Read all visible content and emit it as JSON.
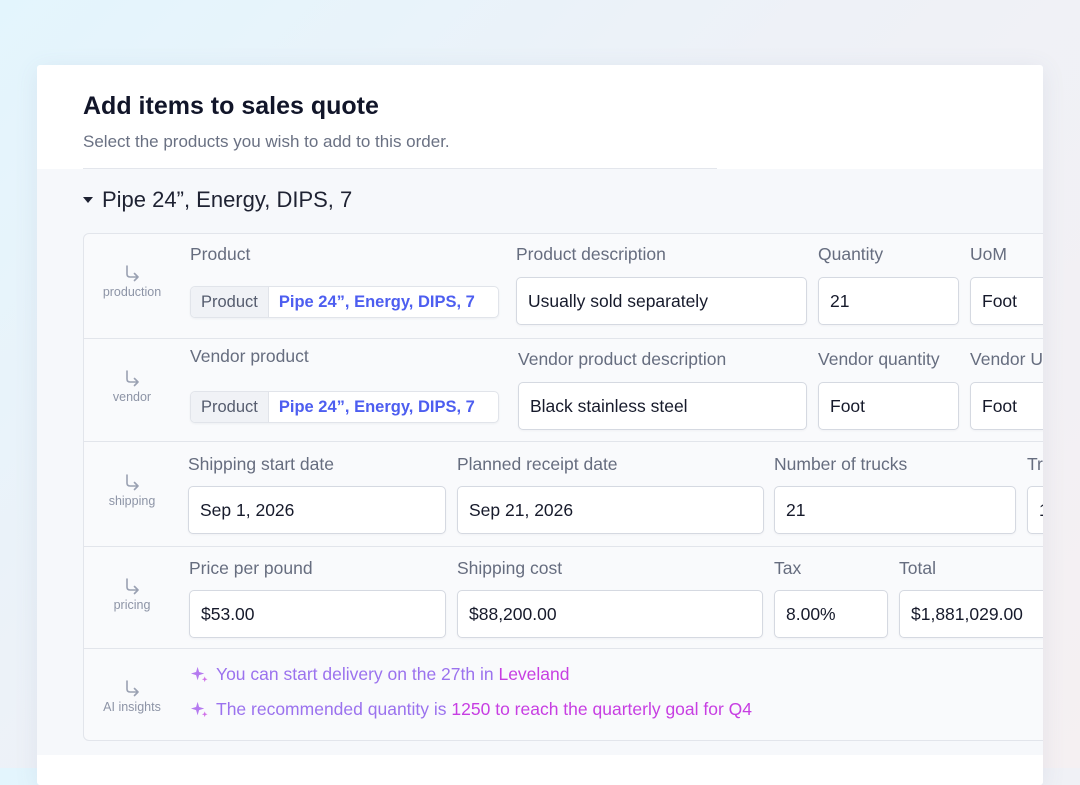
{
  "dialog": {
    "title": "Add items to sales quote",
    "subtitle": "Select the products you wish to add to this order."
  },
  "group": {
    "title": "Pipe 24”, Energy, DIPS, 7"
  },
  "rows": {
    "production": {
      "label": "production",
      "product": {
        "label": "Product",
        "type": "Product",
        "value": "Pipe 24”, Energy, DIPS, 7"
      },
      "description": {
        "label": "Product description",
        "value": "Usually sold separately"
      },
      "quantity": {
        "label": "Quantity",
        "value": "21"
      },
      "uom": {
        "label": "UoM",
        "value": "Foot"
      }
    },
    "vendor": {
      "label": "vendor",
      "product": {
        "label": "Vendor product",
        "type": "Product",
        "value": "Pipe 24”, Energy, DIPS, 7"
      },
      "description": {
        "label": "Vendor product description",
        "value": "Black stainless steel"
      },
      "quantity": {
        "label": "Vendor quantity",
        "value": "Foot"
      },
      "uom": {
        "label": "Vendor U",
        "value": "Foot"
      }
    },
    "shipping": {
      "label": "shipping",
      "start_date": {
        "label": "Shipping start date",
        "value": "Sep 1, 2026"
      },
      "receipt_date": {
        "label": "Planned receipt date",
        "value": "Sep 21, 2026"
      },
      "trucks": {
        "label": "Number of trucks",
        "value": "21"
      },
      "extra": {
        "label": "Tr",
        "value": "1"
      }
    },
    "pricing": {
      "label": "pricing",
      "price_per_pound": {
        "label": "Price per pound",
        "value": "$53.00"
      },
      "shipping_cost": {
        "label": "Shipping cost",
        "value": "$88,200.00"
      },
      "tax": {
        "label": "Tax",
        "value": "8.00%"
      },
      "total": {
        "label": "Total",
        "value": "$1,881,029.00"
      }
    },
    "ai": {
      "label": "AI insights",
      "insights": [
        {
          "prefix": "You can start delivery on the 27th in",
          "highlight": "Leveland"
        },
        {
          "prefix": "The recommended quantity is",
          "highlight": "1250 to reach the quarterly goal for Q4"
        }
      ]
    }
  },
  "colors": {
    "accent": "#4d5ef0",
    "ai_accent": "#c73ee2",
    "ai_prefix": "#9b72ee",
    "text_primary": "#111529",
    "text_secondary": "#666d7f"
  },
  "icons": {
    "row": "return-arrow-icon",
    "collapse": "caret-down-icon",
    "ai": "sparkle-icon"
  }
}
